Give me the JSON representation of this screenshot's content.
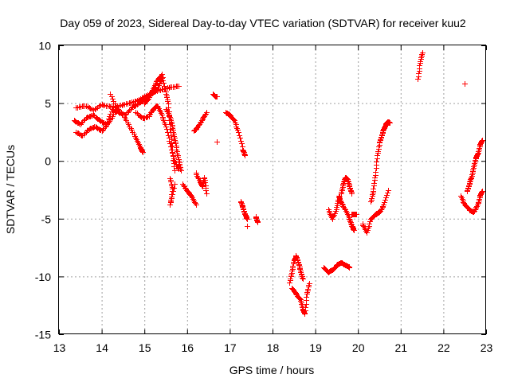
{
  "chart_data": {
    "type": "scatter",
    "title": "Day 059 of 2023, Sidereal Day-to-day VTEC variation (SDTVAR) for receiver kuu2",
    "xlabel": "GPS time / hours",
    "ylabel": "SDTVAR / TECUs",
    "xlim": [
      13,
      23
    ],
    "ylim": [
      -15,
      10
    ],
    "xticks": [
      13,
      14,
      15,
      16,
      17,
      18,
      19,
      20,
      21,
      22,
      23
    ],
    "yticks": [
      -15,
      -10,
      -5,
      0,
      5,
      10
    ],
    "xtick_labels": [
      "13",
      "14",
      "15",
      "16",
      "17",
      "18",
      "19",
      "20",
      "21",
      "22",
      "23"
    ],
    "ytick_labels": [
      "-15",
      "-10",
      "-5",
      "0",
      "5",
      "10"
    ],
    "grid": true,
    "marker": "+",
    "color": "#ff0000",
    "series": [
      {
        "name": "SDTVAR",
        "segments": [
          {
            "x": [
              13.35,
              13.5,
              13.65,
              13.8,
              13.95,
              14.1,
              14.25,
              14.4,
              14.55,
              14.7,
              14.85,
              15.0,
              15.15,
              15.3,
              15.4
            ],
            "y": [
              3.5,
              3.2,
              3.8,
              4.0,
              3.5,
              3.2,
              4.5,
              4.2,
              4.0,
              4.6,
              5.0,
              5.4,
              5.8,
              6.2,
              7.2
            ]
          },
          {
            "x": [
              13.4,
              13.6,
              13.8,
              14.0,
              14.2,
              14.4,
              14.6,
              14.8,
              15.0,
              15.2,
              15.4,
              15.6,
              15.8
            ],
            "y": [
              4.6,
              4.8,
              4.4,
              4.9,
              4.7,
              4.8,
              5.0,
              5.2,
              5.6,
              6.0,
              6.2,
              6.4,
              6.5
            ]
          },
          {
            "x": [
              13.4,
              13.55,
              13.7,
              13.85,
              14.0,
              14.15,
              14.3
            ],
            "y": [
              2.5,
              2.2,
              2.8,
              3.0,
              2.6,
              3.3,
              4.2
            ]
          },
          {
            "x": [
              14.2,
              14.35,
              14.5,
              14.65,
              14.8,
              14.9,
              14.95
            ],
            "y": [
              5.8,
              4.6,
              4.0,
              3.0,
              2.0,
              1.2,
              0.8
            ]
          },
          {
            "x": [
              15.0,
              15.1,
              15.2,
              15.3,
              15.4,
              15.5,
              15.55,
              15.6,
              15.65,
              15.7
            ],
            "y": [
              5.0,
              5.5,
              6.3,
              7.0,
              7.5,
              6.0,
              5.0,
              2.8,
              1.0,
              -0.8
            ]
          },
          {
            "x": [
              14.8,
              14.95,
              15.1,
              15.2,
              15.3,
              15.4,
              15.5,
              15.6,
              15.7,
              15.8
            ],
            "y": [
              4.2,
              3.7,
              3.9,
              4.5,
              4.8,
              4.0,
              3.0,
              1.5,
              0.0,
              -0.7
            ]
          },
          {
            "x": [
              15.5,
              15.6,
              15.65,
              15.7,
              15.75,
              15.8,
              15.85
            ],
            "y": [
              4.5,
              3.8,
              3.0,
              2.0,
              1.0,
              0.0,
              -0.8
            ]
          },
          {
            "x": [
              15.6,
              15.65,
              15.6,
              15.7
            ],
            "y": [
              -1.5,
              -2.4,
              -3.8,
              -2.0
            ]
          },
          {
            "x": [
              15.9,
              16.0,
              16.1,
              16.2
            ],
            "y": [
              -2.0,
              -2.6,
              -3.0,
              -3.8
            ]
          },
          {
            "x": [
              16.15,
              16.25,
              16.35,
              16.45
            ],
            "y": [
              2.6,
              3.0,
              3.6,
              4.2
            ]
          },
          {
            "x": [
              16.2,
              16.3,
              16.35,
              16.4,
              16.45
            ],
            "y": [
              -1.0,
              -1.8,
              -2.2,
              -1.4,
              -2.8
            ]
          },
          {
            "x": [
              16.6,
              16.65,
              16.7
            ],
            "y": [
              5.8,
              5.6,
              5.6
            ]
          },
          {
            "x": [
              16.7
            ],
            "y": [
              1.7
            ]
          },
          {
            "x": [
              16.9,
              17.0,
              17.1,
              17.2,
              17.3,
              17.35
            ],
            "y": [
              4.2,
              4.0,
              3.5,
              2.5,
              1.0,
              0.5
            ]
          },
          {
            "x": [
              17.25,
              17.3,
              17.35,
              17.4
            ],
            "y": [
              -3.5,
              -4.0,
              -4.6,
              -5.0
            ]
          },
          {
            "x": [
              17.4
            ],
            "y": [
              -5.6
            ]
          },
          {
            "x": [
              17.6,
              17.65
            ],
            "y": [
              -4.8,
              -5.3
            ]
          },
          {
            "x": [
              18.4,
              18.45,
              18.5,
              18.55,
              18.6,
              18.65,
              18.7
            ],
            "y": [
              -10.5,
              -9.5,
              -8.6,
              -8.2,
              -8.8,
              -9.5,
              -10.2
            ]
          },
          {
            "x": [
              18.45,
              18.55,
              18.65,
              18.7,
              18.75,
              18.8,
              18.85
            ],
            "y": [
              -11.0,
              -11.5,
              -12.0,
              -12.8,
              -13.2,
              -11.5,
              -10.6
            ]
          },
          {
            "x": [
              19.2,
              19.3,
              19.4,
              19.5,
              19.6,
              19.7,
              19.8
            ],
            "y": [
              -9.2,
              -9.6,
              -9.4,
              -9.0,
              -8.8,
              -9.0,
              -9.2
            ]
          },
          {
            "x": [
              19.3,
              19.4,
              19.5,
              19.55,
              19.6,
              19.7,
              19.8,
              19.85,
              19.9
            ],
            "y": [
              -4.2,
              -5.0,
              -4.0,
              -3.0,
              -3.6,
              -4.2,
              -5.0,
              -5.6,
              -6.0
            ]
          },
          {
            "x": [
              19.6,
              19.65,
              19.7,
              19.75,
              19.8,
              19.85
            ],
            "y": [
              -2.8,
              -2.0,
              -1.4,
              -1.6,
              -2.2,
              -2.8
            ]
          },
          {
            "x": [
              19.85,
              19.95
            ],
            "y": [
              -4.6,
              -4.6
            ]
          },
          {
            "x": [
              20.1,
              20.2,
              20.3,
              20.4,
              20.5,
              20.6,
              20.7
            ],
            "y": [
              -5.4,
              -6.2,
              -5.0,
              -4.6,
              -4.4,
              -3.8,
              -2.5
            ]
          },
          {
            "x": [
              20.3,
              20.35,
              20.4,
              20.45,
              20.5,
              20.55,
              20.6,
              20.65,
              20.7,
              20.75
            ],
            "y": [
              -3.5,
              -2.6,
              -1.2,
              0.5,
              1.6,
              2.2,
              2.8,
              3.2,
              3.4,
              3.3
            ]
          },
          {
            "x": [
              21.4,
              21.45,
              21.5
            ],
            "y": [
              7.1,
              8.5,
              9.4
            ]
          },
          {
            "x": [
              22.5
            ],
            "y": [
              6.7
            ]
          },
          {
            "x": [
              22.4,
              22.5,
              22.6,
              22.7,
              22.8,
              22.85,
              22.9
            ],
            "y": [
              -3.0,
              -3.8,
              -4.2,
              -4.4,
              -3.8,
              -3.0,
              -2.6
            ]
          },
          {
            "x": [
              22.55,
              22.6,
              22.65,
              22.7,
              22.75,
              22.8,
              22.85,
              22.9
            ],
            "y": [
              -2.6,
              -2.0,
              -1.4,
              -0.6,
              0.2,
              0.6,
              1.4,
              1.8
            ]
          }
        ]
      }
    ]
  }
}
